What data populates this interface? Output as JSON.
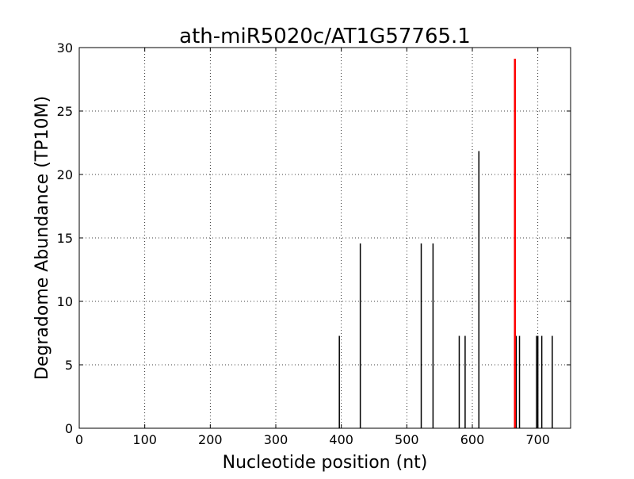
{
  "chart_data": {
    "type": "bar",
    "title": "ath-miR5020c/AT1G57765.1",
    "xlabel": "Nucleotide position (nt)",
    "ylabel": "Degradome Abundance (TP10M)",
    "xlim": [
      0,
      750
    ],
    "ylim": [
      0,
      30
    ],
    "xticks": [
      0,
      100,
      200,
      300,
      400,
      500,
      600,
      700
    ],
    "yticks": [
      0,
      5,
      10,
      15,
      20,
      25,
      30
    ],
    "grid": true,
    "series": [
      {
        "color": "#000000",
        "points": [
          {
            "x": 397,
            "y": 7.28
          },
          {
            "x": 429,
            "y": 14.56
          },
          {
            "x": 522,
            "y": 14.56
          },
          {
            "x": 540,
            "y": 14.56
          },
          {
            "x": 580,
            "y": 7.28
          },
          {
            "x": 589,
            "y": 7.28
          },
          {
            "x": 610,
            "y": 21.84
          },
          {
            "x": 667,
            "y": 7.28
          },
          {
            "x": 672,
            "y": 7.28
          },
          {
            "x": 698,
            "y": 7.28
          },
          {
            "x": 700,
            "y": 7.28
          },
          {
            "x": 706,
            "y": 7.28
          },
          {
            "x": 722,
            "y": 7.28
          }
        ]
      },
      {
        "color": "#ff0000",
        "points": [
          {
            "x": 665,
            "y": 29.12
          }
        ]
      }
    ]
  }
}
